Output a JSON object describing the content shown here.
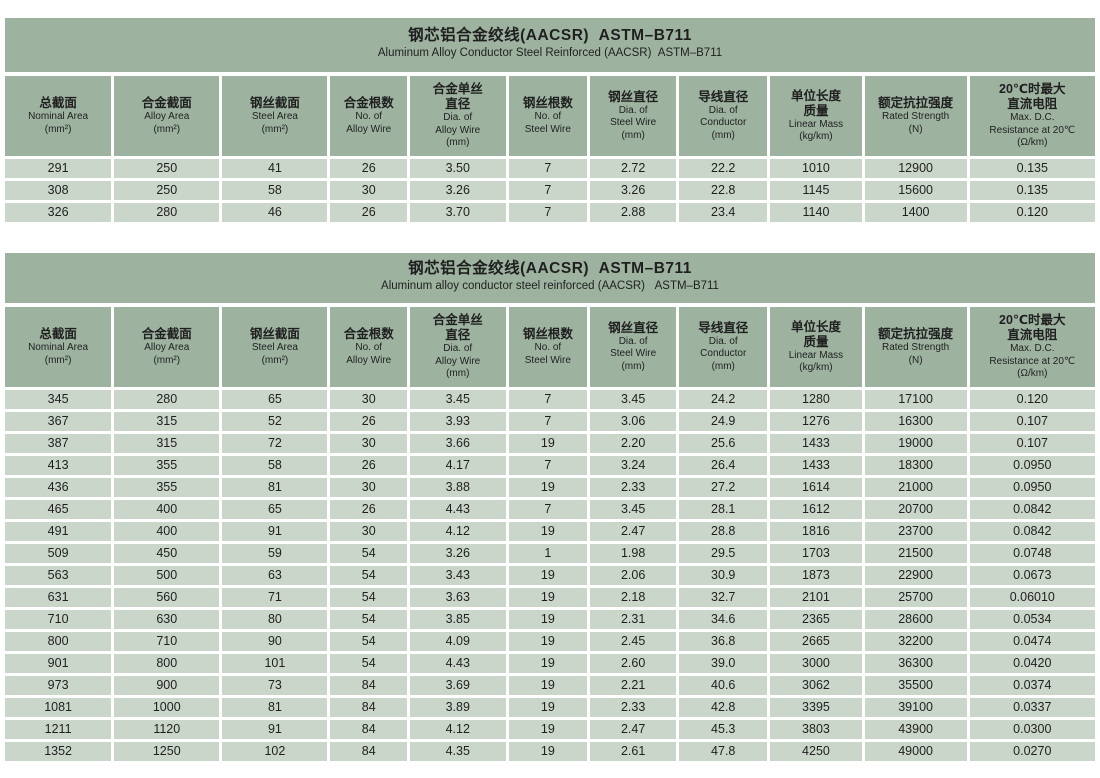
{
  "colors": {
    "band_bg": "#9db3a0",
    "cell_bg": "#cbd6ca",
    "text": "#1f1f1f",
    "page_bg": "#ffffff"
  },
  "columns": [
    {
      "id": "nominal-area",
      "zh": [
        "总截面"
      ],
      "en": [
        "Nominal Area",
        "(mm²)"
      ]
    },
    {
      "id": "alloy-area",
      "zh": [
        "合金截面"
      ],
      "en": [
        "Alloy Area",
        "(mm²)"
      ]
    },
    {
      "id": "steel-area",
      "zh": [
        "钢丝截面"
      ],
      "en": [
        "Steel Area",
        "(mm²)"
      ]
    },
    {
      "id": "no-alloy-wire",
      "zh": [
        "合金根数"
      ],
      "en": [
        "No. of",
        "Alloy Wire"
      ]
    },
    {
      "id": "dia-alloy-wire",
      "zh": [
        "合金单丝",
        "直径"
      ],
      "en": [
        "Dia. of",
        "Alloy Wire",
        "(mm)"
      ]
    },
    {
      "id": "no-steel-wire",
      "zh": [
        "钢丝根数"
      ],
      "en": [
        "No. of",
        "Steel Wire"
      ]
    },
    {
      "id": "dia-steel-wire",
      "zh": [
        "钢丝直径"
      ],
      "en": [
        "Dia. of",
        "Steel Wire",
        "(mm)"
      ]
    },
    {
      "id": "dia-conductor",
      "zh": [
        "导线直径"
      ],
      "en": [
        "Dia. of",
        "Conductor",
        "(mm)"
      ]
    },
    {
      "id": "linear-mass",
      "zh": [
        "单位长度",
        "质量"
      ],
      "en": [
        "Linear Mass",
        "(kg/km)"
      ]
    },
    {
      "id": "rated-strength",
      "zh": [
        "额定抗拉强度"
      ],
      "en": [
        "Rated Strength",
        "(N)"
      ]
    },
    {
      "id": "dc-resistance",
      "zh": [
        "20℃时最大",
        "直流电阻"
      ],
      "en": [
        "Max. D.C.",
        "Resistance at 20℃",
        "(Ω/km)"
      ]
    }
  ],
  "tables": [
    {
      "title": "钢芯铝合金绞线(AACSR)  ASTM–B711",
      "subtitle": "Aluminum Alloy Conductor Steel Reinforced (AACSR)  ASTM–B711",
      "rows": [
        [
          "291",
          "250",
          "41",
          "26",
          "3.50",
          "7",
          "2.72",
          "22.2",
          "1010",
          "12900",
          "0.135"
        ],
        [
          "308",
          "250",
          "58",
          "30",
          "3.26",
          "7",
          "3.26",
          "22.8",
          "1145",
          "15600",
          "0.135"
        ],
        [
          "326",
          "280",
          "46",
          "26",
          "3.70",
          "7",
          "2.88",
          "23.4",
          "1140",
          "1400",
          "0.120"
        ]
      ]
    },
    {
      "title": "钢芯铝合金绞线(AACSR)  ASTM–B711",
      "subtitle": "Aluminum alloy conductor steel reinforced (AACSR)   ASTM–B711",
      "rows": [
        [
          "345",
          "280",
          "65",
          "30",
          "3.45",
          "7",
          "3.45",
          "24.2",
          "1280",
          "17100",
          "0.120"
        ],
        [
          "367",
          "315",
          "52",
          "26",
          "3.93",
          "7",
          "3.06",
          "24.9",
          "1276",
          "16300",
          "0.107"
        ],
        [
          "387",
          "315",
          "72",
          "30",
          "3.66",
          "19",
          "2.20",
          "25.6",
          "1433",
          "19000",
          "0.107"
        ],
        [
          "413",
          "355",
          "58",
          "26",
          "4.17",
          "7",
          "3.24",
          "26.4",
          "1433",
          "18300",
          "0.0950"
        ],
        [
          "436",
          "355",
          "81",
          "30",
          "3.88",
          "19",
          "2.33",
          "27.2",
          "1614",
          "21000",
          "0.0950"
        ],
        [
          "465",
          "400",
          "65",
          "26",
          "4.43",
          "7",
          "3.45",
          "28.1",
          "1612",
          "20700",
          "0.0842"
        ],
        [
          "491",
          "400",
          "91",
          "30",
          "4.12",
          "19",
          "2.47",
          "28.8",
          "1816",
          "23700",
          "0.0842"
        ],
        [
          "509",
          "450",
          "59",
          "54",
          "3.26",
          "1",
          "1.98",
          "29.5",
          "1703",
          "21500",
          "0.0748"
        ],
        [
          "563",
          "500",
          "63",
          "54",
          "3.43",
          "19",
          "2.06",
          "30.9",
          "1873",
          "22900",
          "0.0673"
        ],
        [
          "631",
          "560",
          "71",
          "54",
          "3.63",
          "19",
          "2.18",
          "32.7",
          "2101",
          "25700",
          "0.06010"
        ],
        [
          "710",
          "630",
          "80",
          "54",
          "3.85",
          "19",
          "2.31",
          "34.6",
          "2365",
          "28600",
          "0.0534"
        ],
        [
          "800",
          "710",
          "90",
          "54",
          "4.09",
          "19",
          "2.45",
          "36.8",
          "2665",
          "32200",
          "0.0474"
        ],
        [
          "901",
          "800",
          "101",
          "54",
          "4.43",
          "19",
          "2.60",
          "39.0",
          "3000",
          "36300",
          "0.0420"
        ],
        [
          "973",
          "900",
          "73",
          "84",
          "3.69",
          "19",
          "2.21",
          "40.6",
          "3062",
          "35500",
          "0.0374"
        ],
        [
          "1081",
          "1000",
          "81",
          "84",
          "3.89",
          "19",
          "2.33",
          "42.8",
          "3395",
          "39100",
          "0.0337"
        ],
        [
          "1211",
          "1120",
          "91",
          "84",
          "4.12",
          "19",
          "2.47",
          "45.3",
          "3803",
          "43900",
          "0.0300"
        ],
        [
          "1352",
          "1250",
          "102",
          "84",
          "4.35",
          "19",
          "2.61",
          "47.8",
          "4250",
          "49000",
          "0.0270"
        ]
      ]
    }
  ]
}
